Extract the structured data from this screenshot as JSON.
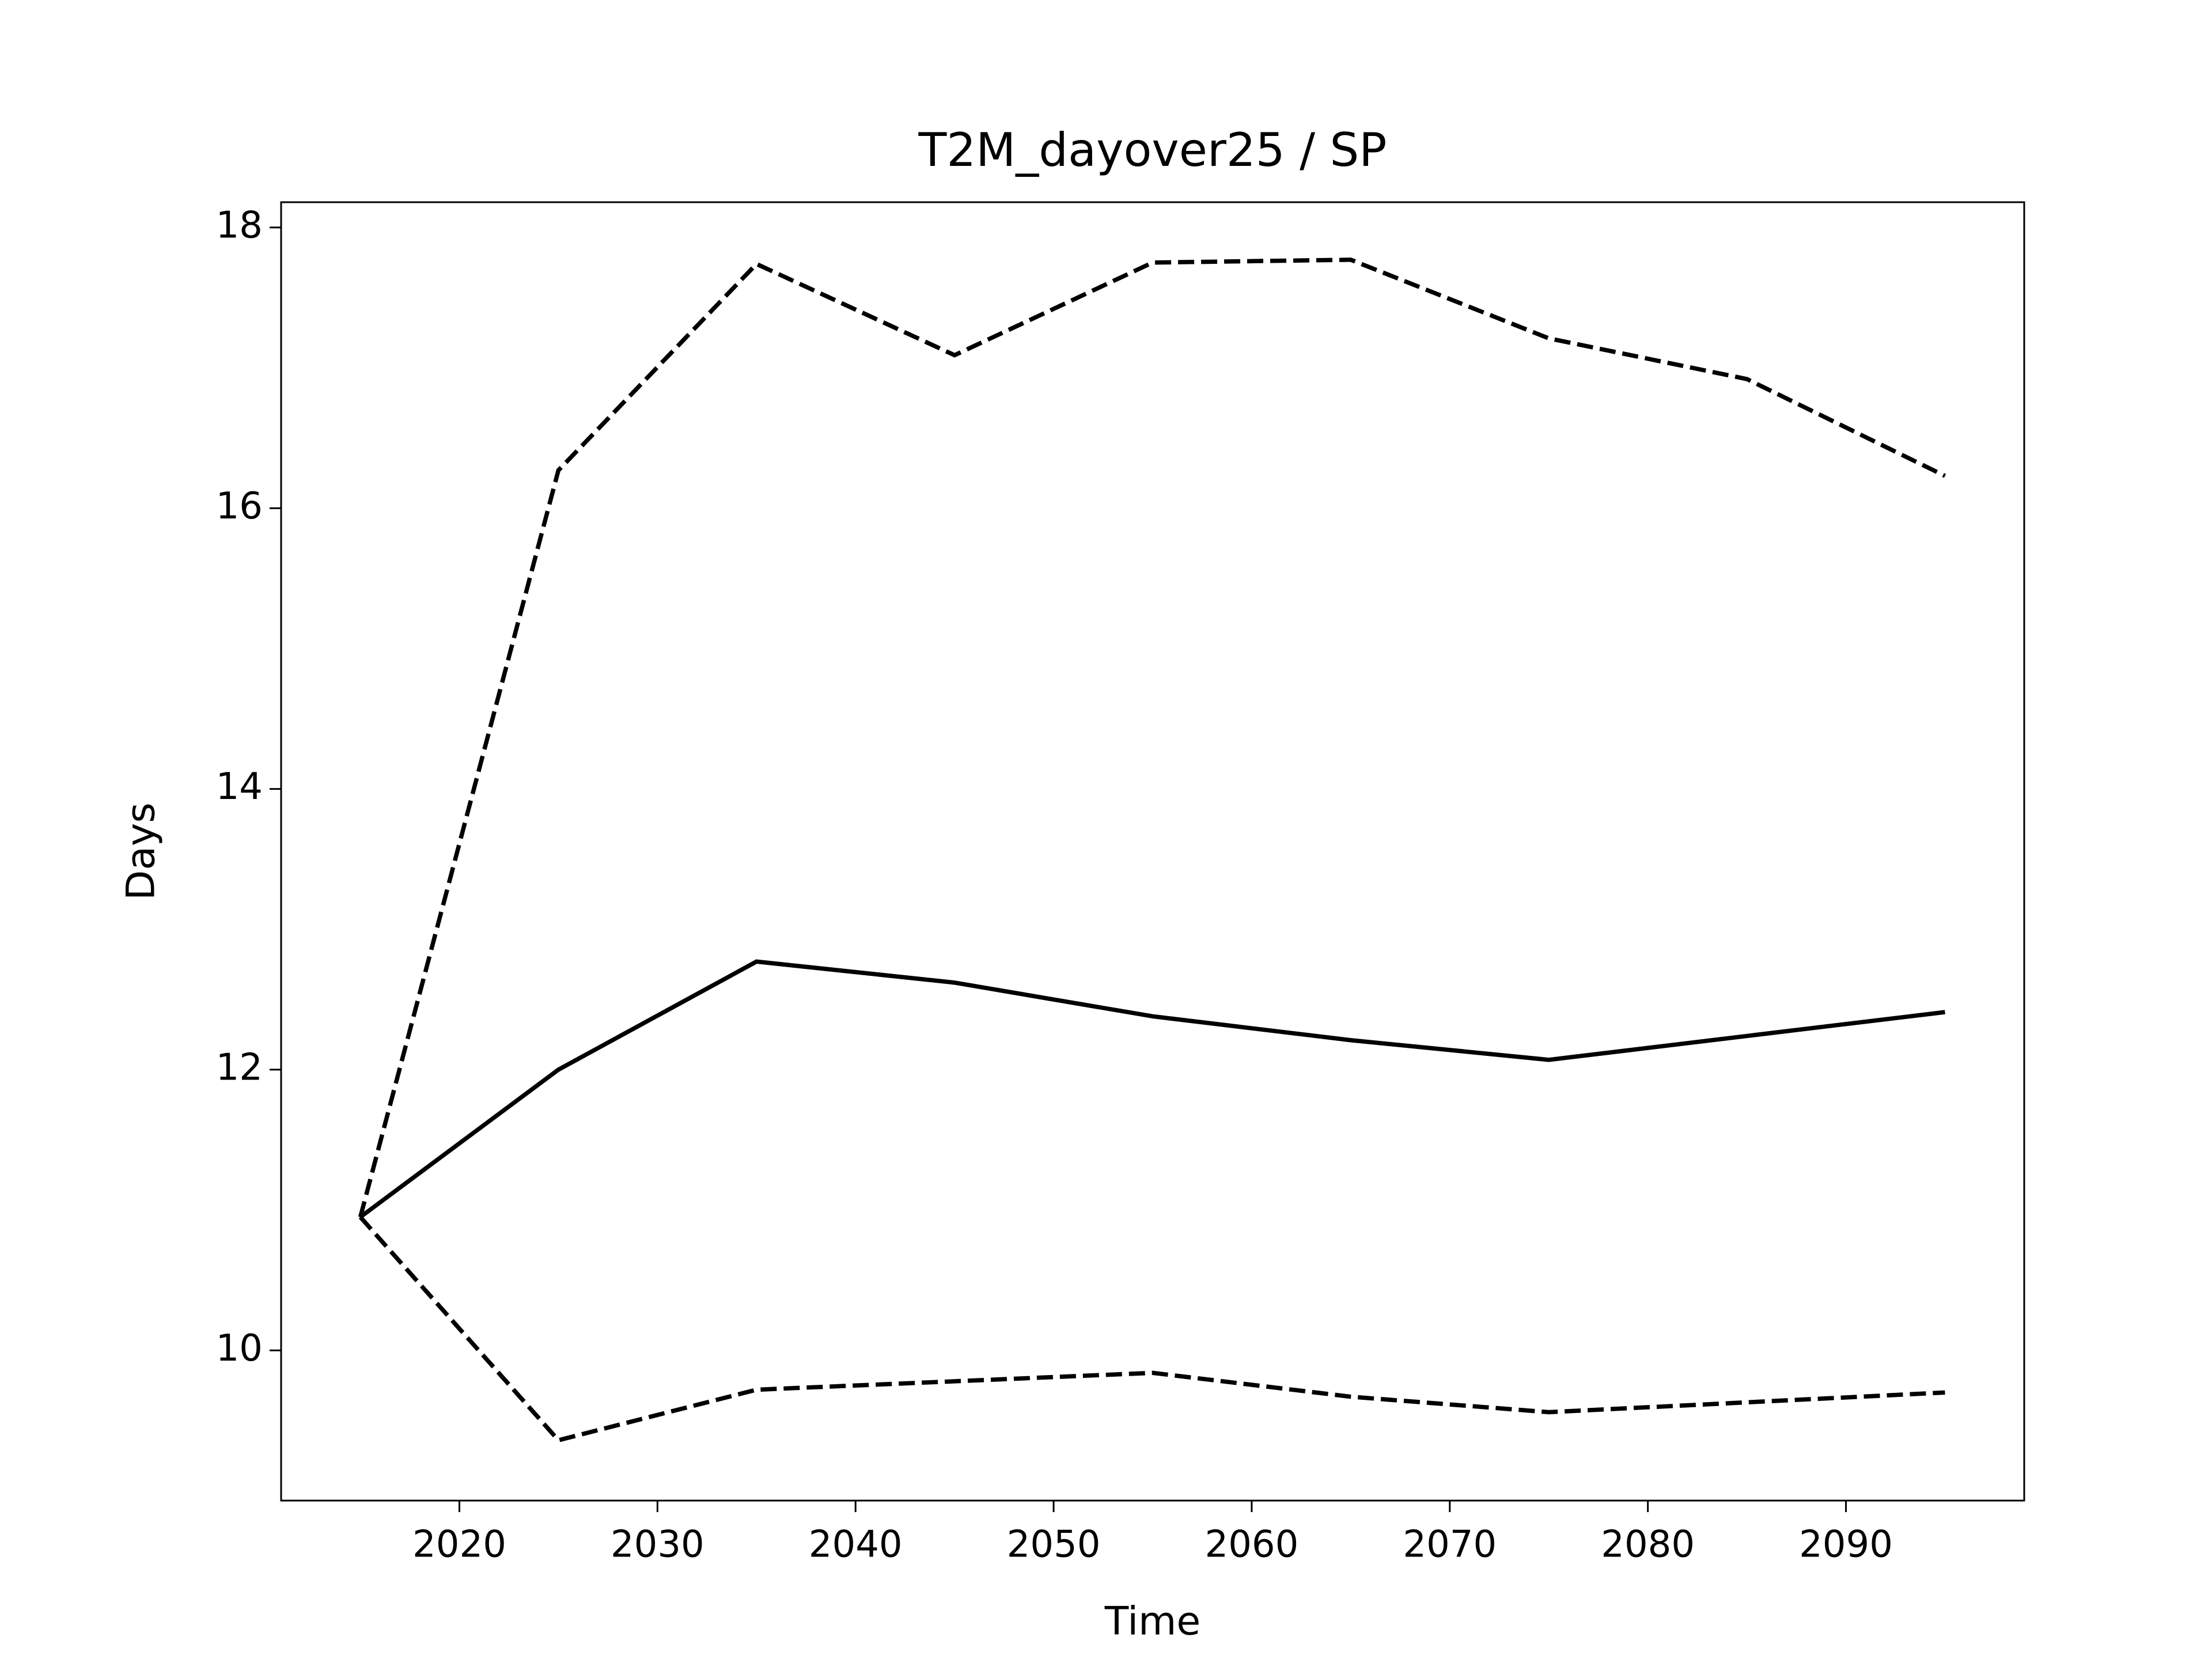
{
  "chart_data": {
    "type": "line",
    "title": "T2M_dayover25 / SP",
    "xlabel": "Time",
    "ylabel": "Days",
    "x": [
      2015,
      2025,
      2035,
      2045,
      2055,
      2065,
      2075,
      2085,
      2095
    ],
    "series": [
      {
        "color": "#000000",
        "style": "solid",
        "values": [
          10.95,
          12.0,
          12.77,
          12.62,
          12.38,
          12.21,
          12.07,
          12.24,
          12.41
        ]
      },
      {
        "color": "#000000",
        "style": "dashed",
        "values": [
          10.95,
          16.27,
          17.74,
          17.09,
          17.75,
          17.77,
          17.21,
          16.92,
          16.23
        ]
      },
      {
        "color": "#000000",
        "style": "dashed",
        "values": [
          10.95,
          9.36,
          9.72,
          9.78,
          9.84,
          9.67,
          9.56,
          9.63,
          9.7
        ]
      }
    ],
    "xlim": [
      2011,
      2099
    ],
    "ylim": [
      8.93,
      18.18
    ],
    "xticks": [
      2020,
      2030,
      2040,
      2050,
      2060,
      2070,
      2080,
      2090
    ],
    "yticks": [
      10,
      12,
      14,
      16,
      18
    ],
    "grid": false
  }
}
